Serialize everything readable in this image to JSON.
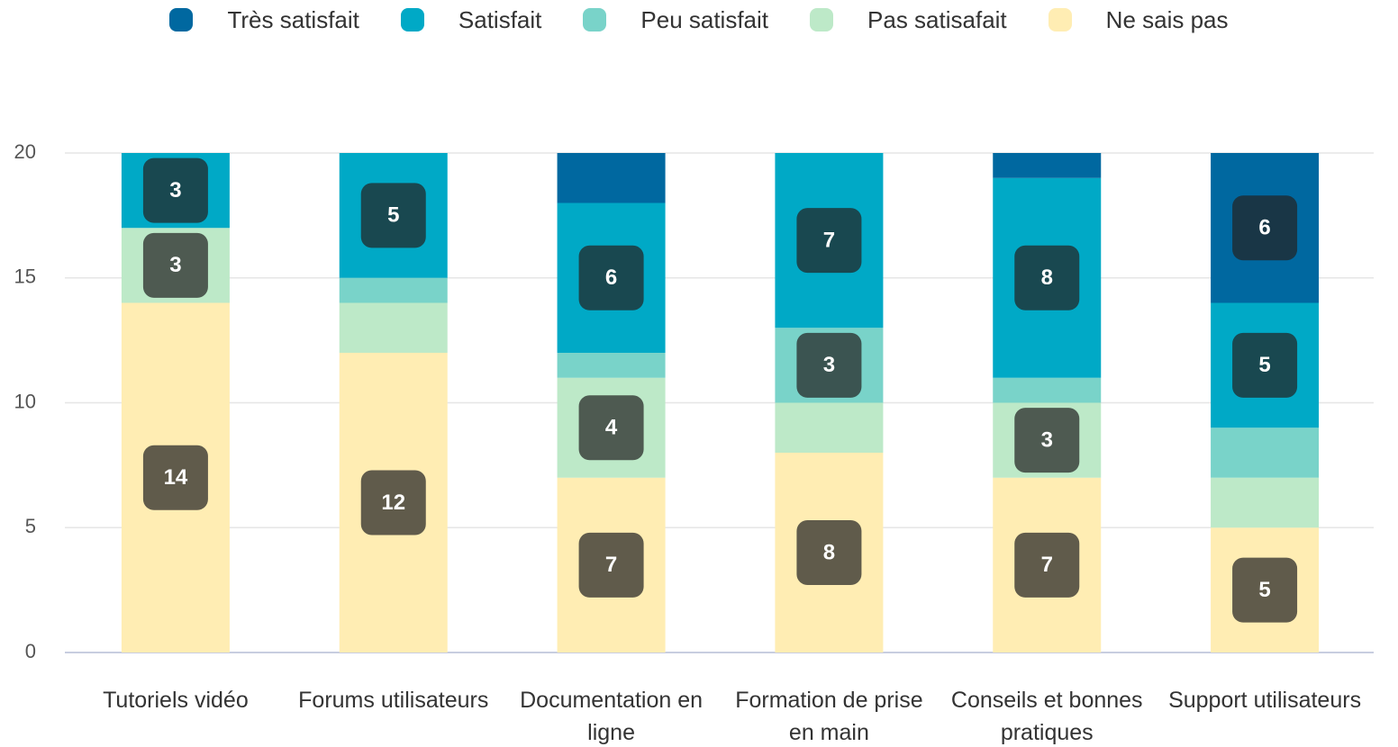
{
  "chart_data": {
    "type": "stacked_bar",
    "categories": [
      "Tutoriels vidéo",
      "Forums utilisateurs",
      "Documentation en ligne",
      "Formation de prise en main",
      "Conseils et bonnes pratiques",
      "Support utilisateurs"
    ],
    "series": [
      {
        "name": "Très satisfait",
        "color": "#0068a0",
        "values": [
          0,
          0,
          2,
          0,
          1,
          6
        ]
      },
      {
        "name": "Satisfait",
        "color": "#00a9c6",
        "values": [
          3,
          5,
          6,
          7,
          8,
          5
        ]
      },
      {
        "name": "Peu satisfait",
        "color": "#79d3c9",
        "values": [
          0,
          1,
          1,
          3,
          1,
          2
        ]
      },
      {
        "name": "Pas satisafait",
        "color": "#bde9c8",
        "values": [
          3,
          2,
          4,
          2,
          3,
          2
        ]
      },
      {
        "name": "Ne sais pas",
        "color": "#ffedb3",
        "values": [
          14,
          12,
          7,
          8,
          7,
          5
        ]
      }
    ],
    "ylim": [
      0,
      20
    ],
    "yticks": [
      0,
      5,
      10,
      15,
      20
    ],
    "grid": true,
    "data_labels": {
      "min_value": 3
    },
    "legend": "top"
  }
}
